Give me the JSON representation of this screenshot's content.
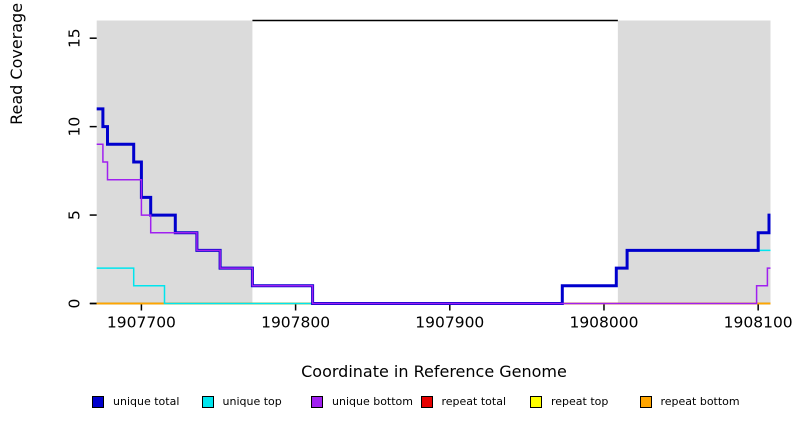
{
  "figure": {
    "xlabel": "Coordinate in Reference Genome",
    "ylabel": "Read Coverage Depth"
  },
  "chart_data": {
    "type": "line",
    "subtype": "step-coverage",
    "title": "",
    "xlabel": "Coordinate in Reference Genome",
    "ylabel": "Read Coverage Depth",
    "x_range": [
      1907671,
      1908108
    ],
    "y_range": [
      0,
      16
    ],
    "x_ticks": [
      1907700,
      1907800,
      1907900,
      1908000,
      1908100
    ],
    "y_ticks": [
      0,
      5,
      10,
      15
    ],
    "grid": false,
    "legend_position": "bottom",
    "shade_color": "#DBDBDB",
    "axis_color": "#000000",
    "background_shaded_regions": [
      {
        "x0": 1907671,
        "x1": 1907772
      },
      {
        "x0": 1908009,
        "x1": 1908108
      }
    ],
    "top_marker": {
      "x0": 1907772,
      "x1": 1908009,
      "y": 16,
      "color": "#000000",
      "width": 1.5
    },
    "series": [
      {
        "name": "repeat-total",
        "label": "repeat total",
        "color": "#E60000",
        "line_width": 1.5,
        "points": [
          [
            1907671,
            0
          ]
        ],
        "end_x": 1908108
      },
      {
        "name": "repeat-top",
        "label": "repeat top",
        "color": "#FFFF00",
        "line_width": 1.5,
        "points": [
          [
            1907671,
            0
          ]
        ],
        "end_x": 1908108
      },
      {
        "name": "repeat-bottom",
        "label": "repeat bottom",
        "color": "#FFA500",
        "line_width": 1.5,
        "points": [
          [
            1907671,
            0
          ]
        ],
        "end_x": 1908108
      },
      {
        "name": "unique-top",
        "label": "unique top",
        "color": "#00E5EE",
        "line_width": 1.5,
        "points": [
          [
            1907671,
            2
          ],
          [
            1907695,
            1
          ],
          [
            1907715,
            0
          ],
          [
            1907973,
            1
          ],
          [
            1908008,
            2
          ],
          [
            1908015,
            3
          ]
        ],
        "end_x": 1908108
      },
      {
        "name": "unique-total",
        "label": "unique total",
        "color": "#0000CD",
        "line_width": 3,
        "points": [
          [
            1907671,
            11
          ],
          [
            1907675,
            10
          ],
          [
            1907678,
            9
          ],
          [
            1907695,
            8
          ],
          [
            1907700,
            6
          ],
          [
            1907706,
            5
          ],
          [
            1907722,
            4
          ],
          [
            1907736,
            3
          ],
          [
            1907751,
            2
          ],
          [
            1907772,
            1
          ],
          [
            1907811,
            0
          ],
          [
            1907973,
            1
          ],
          [
            1908008,
            2
          ],
          [
            1908015,
            3
          ],
          [
            1908100,
            4
          ],
          [
            1908107,
            5
          ]
        ],
        "end_x": 1908108
      },
      {
        "name": "unique-bottom",
        "label": "unique bottom",
        "color": "#A020F0",
        "line_width": 1.5,
        "points": [
          [
            1907671,
            9
          ],
          [
            1907675,
            8
          ],
          [
            1907678,
            7
          ],
          [
            1907700,
            5
          ],
          [
            1907706,
            4
          ],
          [
            1907736,
            3
          ],
          [
            1907751,
            2
          ],
          [
            1907772,
            1
          ],
          [
            1907811,
            0
          ],
          [
            1908099,
            1
          ],
          [
            1908106,
            2
          ]
        ],
        "end_x": 1908108
      }
    ],
    "legend": [
      {
        "label": "unique total",
        "color": "#0000CD"
      },
      {
        "label": "unique top",
        "color": "#00E5EE"
      },
      {
        "label": "unique bottom",
        "color": "#A020F0"
      },
      {
        "label": "repeat total",
        "color": "#E60000"
      },
      {
        "label": "repeat top",
        "color": "#FFFF00"
      },
      {
        "label": "repeat bottom",
        "color": "#FFA500"
      }
    ]
  }
}
